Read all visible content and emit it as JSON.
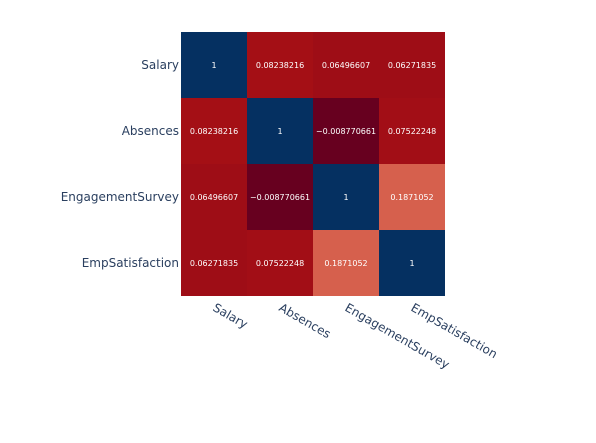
{
  "chart_data": {
    "type": "heatmap",
    "title": "",
    "xlabel": "",
    "ylabel": "",
    "x": [
      "Salary",
      "Absences",
      "EngagementSurvey",
      "EmpSatisfaction"
    ],
    "y": [
      "Salary",
      "Absences",
      "EngagementSurvey",
      "EmpSatisfaction"
    ],
    "z": [
      [
        1,
        0.08238216,
        0.06496607,
        0.06271835
      ],
      [
        0.08238216,
        1,
        -0.008770661,
        0.07522248
      ],
      [
        0.06496607,
        -0.008770661,
        1,
        0.1871052
      ],
      [
        0.06271835,
        0.07522248,
        0.1871052,
        1
      ]
    ],
    "z_text": [
      [
        "1",
        "0.08238216",
        "0.06496607",
        "0.06271835"
      ],
      [
        "0.08238216",
        "1",
        "−0.008770661",
        "0.07522248"
      ],
      [
        "0.06496607",
        "−0.008770661",
        "1",
        "0.1871052"
      ],
      [
        "0.06271835",
        "0.07522248",
        "0.1871052",
        "1"
      ]
    ],
    "colorscale": "RdBu",
    "colors": {
      "diagonal": "#053061",
      "dark_red": "#67001f",
      "mid_red": "#a50f15",
      "light_red": "#d6604d",
      "axis_text": "#2a3f5f",
      "cell_text": "#ffffff"
    },
    "showscale": false,
    "grid": false
  }
}
